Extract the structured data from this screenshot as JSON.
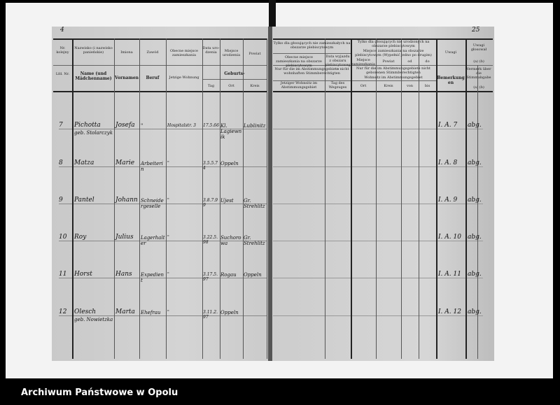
{
  "page_numbers": {
    "left": "4",
    "right": "25"
  },
  "header_left": {
    "nr_pl": "Nr. kolejny",
    "nr_de": "Lfd. Nr.",
    "name_pl": "Nazwisko (i nazwisko panieńskie)",
    "name_de": "Name (und Mädchenname)",
    "firstname_pl": "Imiona",
    "firstname_de": "Vornamen",
    "job_pl": "Zawód",
    "job_de": "Beruf",
    "residence_pl": "Obecne miejsce zamieszkania",
    "residence_de": "Jetzige Wohnung",
    "date_pl": "Data uro-dzenia",
    "place_pl": "Miejsce urodzenia",
    "district_pl": "Powiat",
    "birth_de": "Geburts-",
    "day_de": "Tag",
    "place_de": "Ort",
    "district_de": "Kreis"
  },
  "header_right": {
    "g1_pl": "Tylko dla głosujących nie zamieszkałych na obszarze plebiscytowym",
    "g1a_pl": "Obecne miejsce zamieszkania na obszarze plebiscytowym",
    "g1b_pl": "Data wyjazdu z obszaru plebiscytowego",
    "g1_de": "Nur für die im Abstimmungsgebiete nicht wohnhaften Stimmberechtigten",
    "g1a_de": "Jetziger Wohnsitz im Abstimmungsgebiet",
    "g1b_de": "Tag des Wegzuges",
    "g2_pl": "Tylko dla głosujących nie urodzonych na obszarze plebiscytowym",
    "g2_note_pl": "Miejsce zamieszkania na obszarze plebiscytowym (Wypełnić jedno po drugim)",
    "g2a_pl": "Miejsce zamieszkania",
    "g2b_pl": "Powiat",
    "g2c_pl": "od",
    "g2d_pl": "do",
    "g2_de": "Nur für die im Abstimmungsgebiete nicht geborenen Stimmberechtigten",
    "g2_note_de": "Wohnsitz im Abstimmungsgebiet",
    "g2a_de": "Ort",
    "g2b_de": "Kreis",
    "g2c_de": "von",
    "g2d_de": "bis",
    "remarks_pl": "Uwagi",
    "remarks_de": "Bemerkungen",
    "vote_pl": "Uwagi głosował",
    "vote_de": "Vermerk über die Stimmabgabe",
    "ab_pl": "(a) (b)",
    "ab_de": "(a) (b)"
  },
  "rows": [
    {
      "nr": "7",
      "name": "Pichotta",
      "name2": "geb. Stolarczyk",
      "first": "Josefa",
      "job": "\"",
      "res": "Hospitalstr. 3",
      "date": "17.5.66",
      "place": "Kl. Lagiewnik",
      "district": "Lublinitz",
      "rem": "I. A. 7",
      "vote": "abg."
    },
    {
      "nr": "8",
      "name": "Matza",
      "name2": "",
      "first": "Marie",
      "job": "Arbeiterin",
      "res": "\"",
      "date": "3.5.5.74",
      "place": "Oppeln",
      "district": "",
      "rem": "I. A. 8",
      "vote": "abg."
    },
    {
      "nr": "9",
      "name": "Pantel",
      "name2": "",
      "first": "Johann",
      "job": "Schneidergeselle",
      "res": "\"",
      "date": "3.8.7.99",
      "place": "Ujest",
      "district": "Gr. Strehlitz",
      "rem": "I. A. 9",
      "vote": "abg."
    },
    {
      "nr": "10",
      "name": "Roy",
      "name2": "",
      "first": "Julius",
      "job": "Lagerhalter",
      "res": "\"",
      "date": "3.22.5.98",
      "place": "Suchorowa",
      "district": "Gr. Strehlitz",
      "rem": "I. A. 10",
      "vote": "abg."
    },
    {
      "nr": "11",
      "name": "Horst",
      "name2": "",
      "first": "Hans",
      "job": "Expedient",
      "res": "\"",
      "date": "3.17.5.97",
      "place": "Rogau",
      "district": "Oppeln",
      "rem": "I. A. 11",
      "vote": "abg."
    },
    {
      "nr": "12",
      "name": "Olesch",
      "name2": "geb. Nowietzka",
      "first": "Marta",
      "job": "Ehefrau",
      "res": "\"",
      "date": "3.11.2.97",
      "place": "Oppeln",
      "district": "",
      "rem": "I. A. 12",
      "vote": "abg."
    }
  ],
  "footer": {
    "archive": "Archiwum Państwowe w Opolu"
  }
}
